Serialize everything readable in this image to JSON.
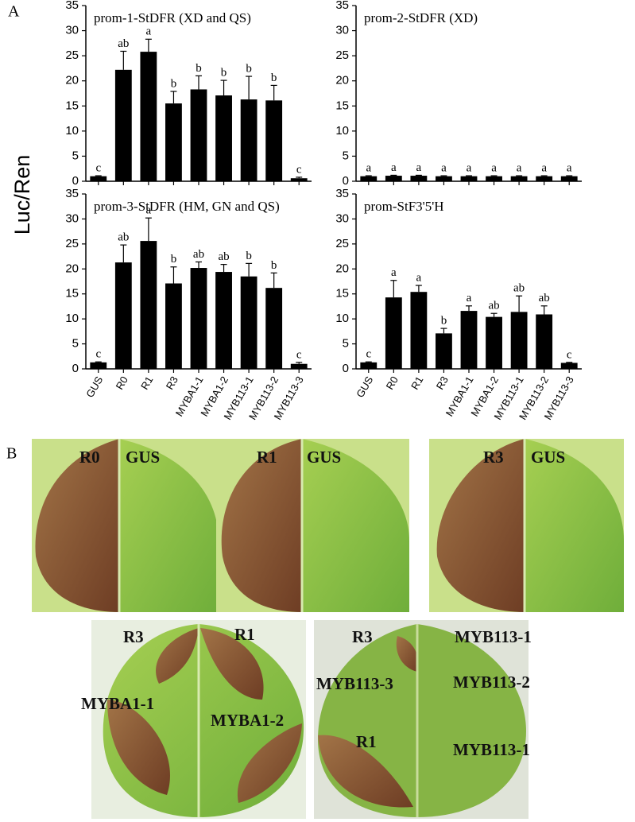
{
  "panel_a": "A",
  "y_label": "Luc/Ren",
  "panel_b": "B",
  "chart_data": [
    {
      "type": "bar",
      "title": "prom-1-StDFR (XD and QS)",
      "color": "#000000",
      "values": [
        1.0,
        22.2,
        25.8,
        15.5,
        18.3,
        17.1,
        16.3,
        16.1,
        0.6
      ],
      "errors": [
        0.1,
        3.7,
        2.5,
        2.4,
        2.7,
        3.0,
        4.6,
        3.0,
        0.2
      ],
      "letters": [
        "c",
        "ab",
        "a",
        "b",
        "b",
        "b",
        "b",
        "b",
        "c"
      ],
      "ylim": [
        0,
        35
      ],
      "yticks": [
        0,
        5,
        10,
        15,
        20,
        25,
        30,
        35
      ]
    },
    {
      "type": "bar",
      "title": "prom-2-StDFR (XD)",
      "color": "#000000",
      "values": [
        1.0,
        1.1,
        1.1,
        1.0,
        1.0,
        1.0,
        1.0,
        1.0,
        1.0
      ],
      "errors": [
        0.1,
        0.1,
        0.1,
        0.1,
        0.1,
        0.1,
        0.1,
        0.1,
        0.1
      ],
      "letters": [
        "a",
        "a",
        "a",
        "a",
        "a",
        "a",
        "a",
        "a",
        "a"
      ],
      "ylim": [
        0,
        35
      ],
      "yticks": [
        0,
        5,
        10,
        15,
        20,
        25,
        30,
        35
      ]
    },
    {
      "type": "bar",
      "title": "prom-3-StDFR (HM, GN and QS)",
      "color": "#000000",
      "categories": [
        "GUS",
        "R0",
        "R1",
        "R3",
        "MYBA1-1",
        "MYBA1-2",
        "MYB113-1",
        "MYB113-2",
        "MYB113-3"
      ],
      "values": [
        1.3,
        21.3,
        25.6,
        17.1,
        20.2,
        19.4,
        18.5,
        16.2,
        1.0
      ],
      "errors": [
        0.1,
        3.5,
        4.6,
        3.3,
        1.2,
        1.5,
        2.6,
        3.0,
        0.3
      ],
      "letters": [
        "c",
        "ab",
        "a",
        "b",
        "ab",
        "ab",
        "b",
        "b",
        "c"
      ],
      "ylim": [
        0,
        35
      ],
      "yticks": [
        0,
        5,
        10,
        15,
        20,
        25,
        30,
        35
      ]
    },
    {
      "type": "bar",
      "title": "prom-StF3'5'H",
      "color": "#000000",
      "categories": [
        "GUS",
        "R0",
        "R1",
        "R3",
        "MYBA1-1",
        "MYBA1-2",
        "MYB113-1",
        "MYB113-2",
        "MYB113-3"
      ],
      "values": [
        1.3,
        14.3,
        15.4,
        7.1,
        11.6,
        10.4,
        11.4,
        10.9,
        1.2
      ],
      "errors": [
        0.1,
        3.4,
        1.3,
        1.0,
        1.0,
        0.7,
        3.2,
        1.7,
        0.1
      ],
      "letters": [
        "c",
        "a",
        "a",
        "b",
        "a",
        "ab",
        "ab",
        "ab",
        "c"
      ],
      "ylim": [
        0,
        35
      ],
      "yticks": [
        0,
        5,
        10,
        15,
        20,
        25,
        30,
        35
      ]
    }
  ],
  "photos": [
    {
      "labels": [
        "R0",
        "GUS"
      ]
    },
    {
      "labels": [
        "R1",
        "GUS"
      ]
    },
    {
      "labels": [
        "R3",
        "GUS"
      ]
    },
    {
      "labels": [
        "R3",
        "R1",
        "MYBA1-1",
        "MYBA1-2"
      ]
    },
    {
      "labels": [
        "R3",
        "MYB113-1",
        "MYB113-3",
        "MYB113-2",
        "R1",
        "MYB113-1"
      ]
    }
  ]
}
